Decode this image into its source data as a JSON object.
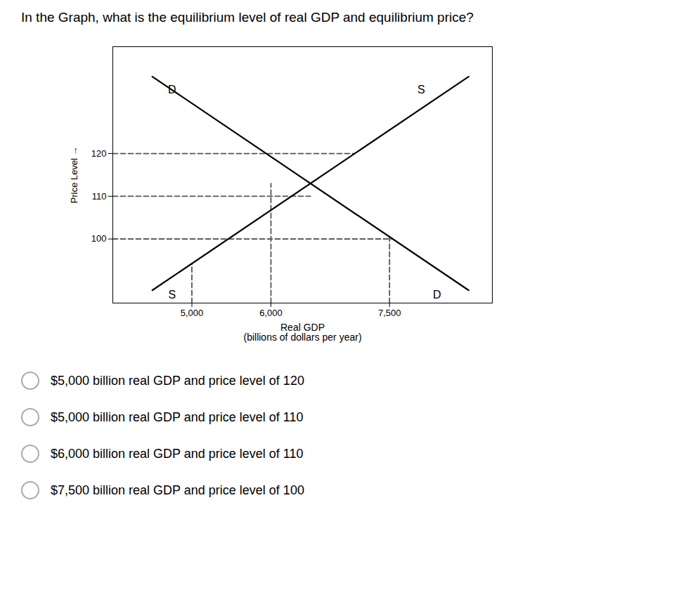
{
  "chart_data": {
    "type": "line",
    "title": "In the Graph, what is the equilibrium level of real GDP and equilibrium price?",
    "xlabel": "Real GDP\n(billions of dollars per year)",
    "ylabel": "Price Level",
    "xlim": [
      4000,
      8800
    ],
    "ylim": [
      85,
      145
    ],
    "xticks": [
      {
        "value": 5000,
        "label": "5,000"
      },
      {
        "value": 6000,
        "label": "6,000"
      },
      {
        "value": 7500,
        "label": "7,500"
      }
    ],
    "yticks": [
      100,
      110,
      120
    ],
    "grid": false,
    "series": [
      {
        "color": "#000000",
        "line_style": "solid",
        "x": [
          4500,
          8500
        ],
        "values": [
          138,
          88
        ]
      },
      {
        "color": "#000000",
        "line_style": "solid",
        "x": [
          4500,
          8500
        ],
        "values": [
          88,
          138
        ]
      },
      {
        "color": "#555555",
        "line_style": "dashed",
        "x": [
          4000,
          7060
        ],
        "values": [
          120,
          120
        ]
      },
      {
        "color": "#555555",
        "line_style": "dashed",
        "x": [
          4000,
          6500
        ],
        "values": [
          110,
          110
        ]
      },
      {
        "color": "#555555",
        "line_style": "dashed",
        "x": [
          4000,
          7540
        ],
        "values": [
          100,
          100
        ]
      },
      {
        "color": "#555555",
        "line_style": "dashed",
        "x": [
          5000,
          5000
        ],
        "values": [
          85,
          94.25
        ]
      },
      {
        "color": "#555555",
        "line_style": "dashed",
        "x": [
          6000,
          6000
        ],
        "values": [
          85,
          113
        ]
      },
      {
        "color": "#555555",
        "line_style": "dashed",
        "x": [
          7500,
          7500
        ],
        "values": [
          85,
          100.5
        ]
      }
    ],
    "annotations": [
      {
        "text": "D",
        "x": 4750,
        "y": 134
      },
      {
        "text": "S",
        "x": 7900,
        "y": 134
      },
      {
        "text": "S",
        "x": 4750,
        "y": 86
      },
      {
        "text": "D",
        "x": 8100,
        "y": 86
      }
    ],
    "choices": [
      "$5,000 billion real GDP and price level of 120",
      "$5,000 billion real GDP and price level of 110",
      "$6,000 billion real GDP and price level of 110",
      "$7,500 billion real GDP and price level of 100"
    ]
  }
}
